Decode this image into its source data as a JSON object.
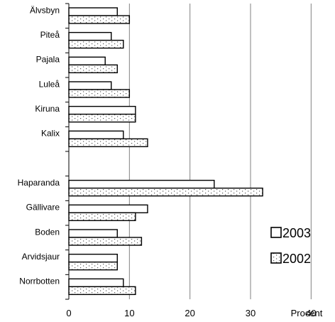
{
  "chart_data": {
    "type": "bar",
    "orientation": "horizontal",
    "categories": [
      "Älvsbyn",
      "Piteå",
      "Pajala",
      "Luleå",
      "Kiruna",
      "Kalix",
      "",
      "Haparanda",
      "Gällivare",
      "Boden",
      "Arvidsjaur",
      "Norrbotten"
    ],
    "series": [
      {
        "name": "2003",
        "values": [
          8,
          7,
          6,
          7,
          11,
          9,
          null,
          24,
          13,
          8,
          8,
          9
        ],
        "fill": "#ffffff",
        "pattern": "none"
      },
      {
        "name": "2002",
        "values": [
          10,
          9,
          8,
          10,
          11,
          13,
          null,
          32,
          11,
          12,
          8,
          11
        ],
        "fill": "#ffffff",
        "pattern": "dotted"
      }
    ],
    "xticks": [
      "0",
      "10",
      "20",
      "30",
      "40"
    ],
    "xlim": [
      0,
      40
    ],
    "xlabel": "Procent",
    "grid": "vertical",
    "legend_position": "right",
    "colors": {
      "bar_stroke": "#000000",
      "grid": "#808080",
      "dots": "#555555"
    }
  }
}
